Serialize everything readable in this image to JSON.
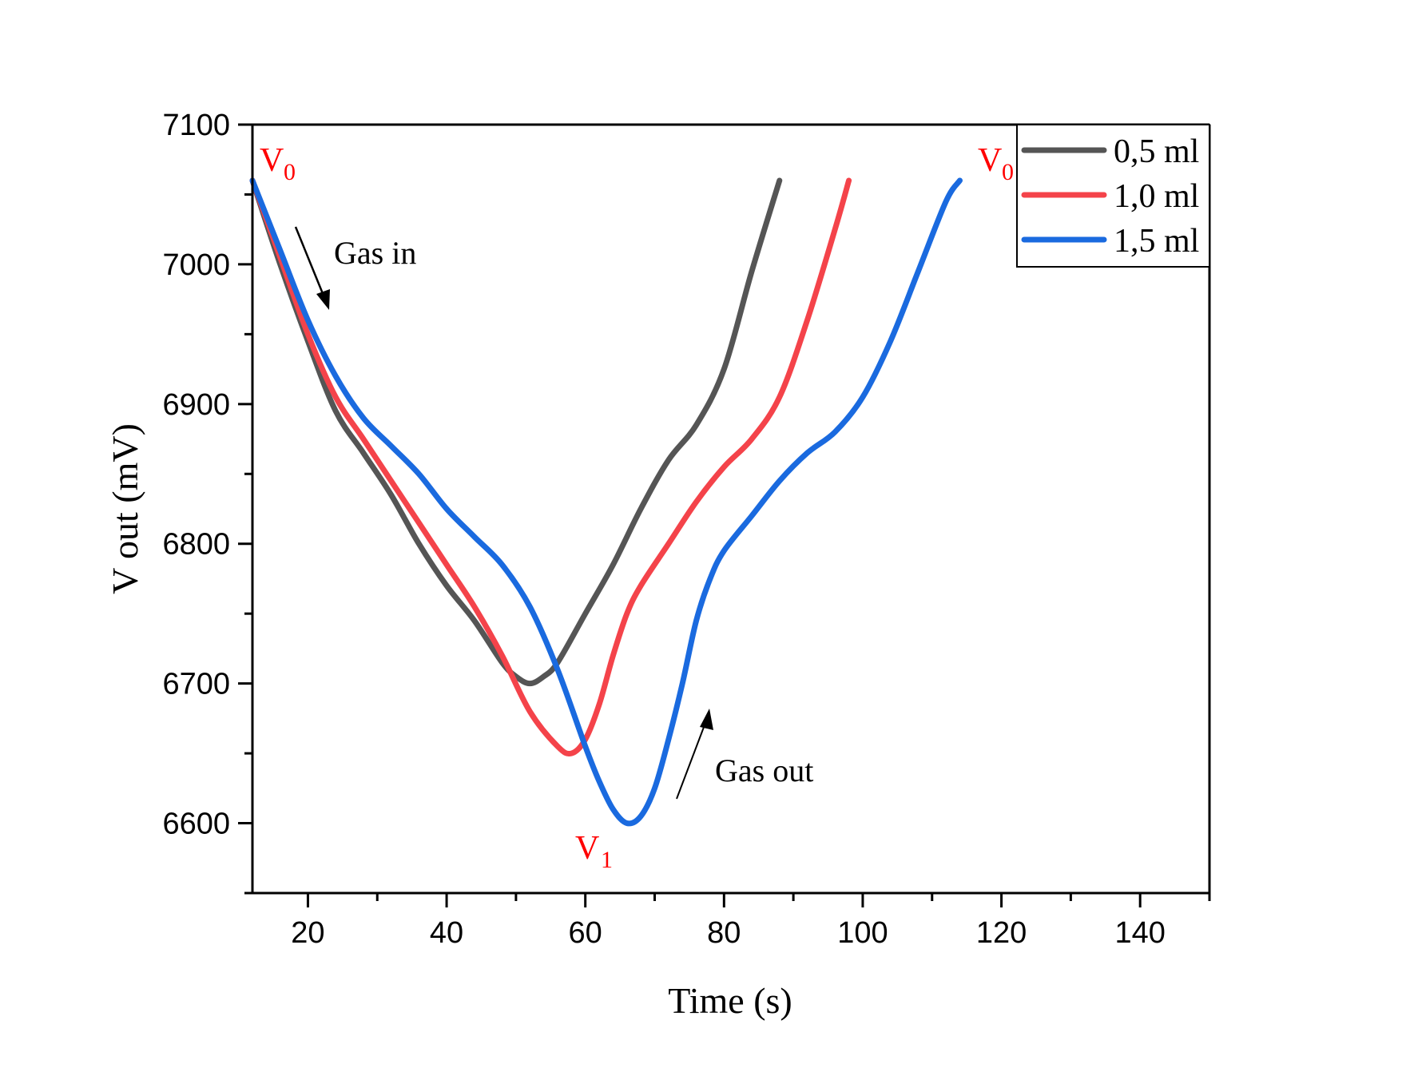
{
  "chart_data": {
    "type": "line",
    "title": "",
    "xlabel": "Time (s)",
    "ylabel": "V out (mV)",
    "xlim": [
      12,
      150
    ],
    "ylim": [
      6550,
      7100
    ],
    "x_ticks": [
      20,
      40,
      60,
      80,
      100,
      120,
      140
    ],
    "y_ticks": [
      6600,
      6700,
      6800,
      6900,
      7000,
      7100
    ],
    "grid": false,
    "legend_position": "top-right",
    "series": [
      {
        "name": "0,5 ml",
        "color": "#555555",
        "x": [
          12,
          16,
          20,
          24,
          28,
          32,
          36,
          40,
          44,
          48,
          50,
          52,
          54,
          56,
          60,
          64,
          68,
          72,
          76,
          80,
          84,
          88
        ],
        "y": [
          7060,
          7000,
          6945,
          6895,
          6865,
          6835,
          6800,
          6770,
          6745,
          6715,
          6705,
          6700,
          6705,
          6715,
          6750,
          6785,
          6825,
          6860,
          6885,
          6925,
          6995,
          7060
        ]
      },
      {
        "name": "1,0 ml",
        "color": "#f4434a",
        "x": [
          12,
          16,
          20,
          24,
          28,
          32,
          36,
          40,
          44,
          48,
          52,
          56,
          58,
          60,
          62,
          64,
          66,
          68,
          72,
          76,
          80,
          84,
          88,
          92,
          96,
          98
        ],
        "y": [
          7060,
          7005,
          6950,
          6905,
          6875,
          6845,
          6815,
          6785,
          6755,
          6720,
          6680,
          6655,
          6650,
          6660,
          6685,
          6720,
          6750,
          6770,
          6800,
          6830,
          6855,
          6875,
          6905,
          6960,
          7025,
          7060
        ]
      },
      {
        "name": "1,5 ml",
        "color": "#1a6adf",
        "x": [
          12,
          16,
          20,
          24,
          28,
          32,
          36,
          40,
          44,
          48,
          52,
          56,
          60,
          62,
          64,
          66,
          68,
          70,
          72,
          74,
          76,
          78,
          80,
          84,
          88,
          92,
          96,
          100,
          104,
          108,
          112,
          114
        ],
        "y": [
          7060,
          7010,
          6960,
          6920,
          6890,
          6870,
          6850,
          6825,
          6805,
          6785,
          6755,
          6710,
          6655,
          6630,
          6610,
          6600,
          6605,
          6625,
          6660,
          6700,
          6745,
          6775,
          6795,
          6820,
          6845,
          6865,
          6880,
          6905,
          6945,
          6995,
          7045,
          7060
        ]
      }
    ],
    "annotations": [
      {
        "text": "V",
        "sub": "0",
        "color": "#ff0000",
        "at": "start of curves (x≈12, y≈7060)"
      },
      {
        "text": "V",
        "sub": "0",
        "color": "#ff0000",
        "at": "end of curves (x≈114, y≈7060)"
      },
      {
        "text": "V",
        "sub": "1",
        "color": "#ff0000",
        "at": "minimum (x≈62, y≈6590)"
      },
      {
        "text": "Gas in",
        "color": "#000000",
        "arrow": "down-right"
      },
      {
        "text": "Gas out",
        "color": "#000000",
        "arrow": "up-right"
      }
    ]
  }
}
